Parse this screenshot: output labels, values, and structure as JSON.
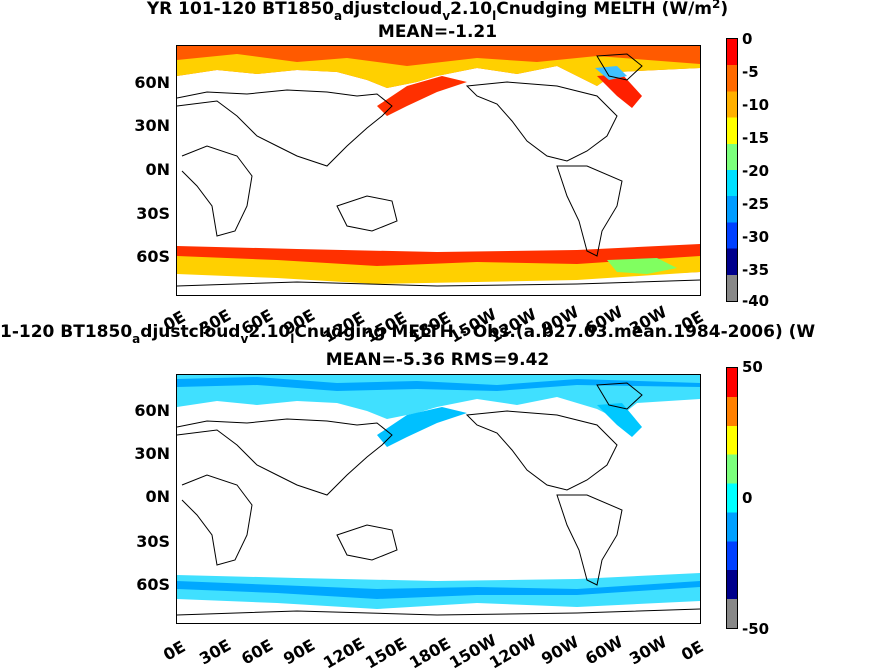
{
  "panels": [
    {
      "title_parts": [
        "YR 101-120 BT1850",
        "a",
        "djustcloud",
        "v",
        "2.10",
        "l",
        "Cnudging  MELTH (W/m",
        "2",
        ")"
      ],
      "subtitle": "MEAN=-1.21",
      "lat_labels": [
        "60N",
        "30N",
        "0N",
        "30S",
        "60S"
      ],
      "lon_labels": [
        "0E",
        "30E",
        "60E",
        "90E",
        "120E",
        "150E",
        "180E",
        "150W",
        "120W",
        "90W",
        "60W",
        "30W",
        "0E"
      ],
      "colorbar_labels": [
        "0",
        "-5",
        "-10",
        "-15",
        "-20",
        "-25",
        "-30",
        "-35",
        "-40"
      ],
      "colorbar_colors": [
        "#ff0000",
        "#ff6a00",
        "#ffb000",
        "#ffff00",
        "#7cff7c",
        "#00e0ff",
        "#009cff",
        "#0040ff",
        "#00008c",
        "#888888"
      ]
    },
    {
      "title_parts": [
        "1-120 BT1850",
        "a",
        "djustcloud",
        "v",
        "2.10",
        "l",
        "Cnudging MELTH - Obs.(a.b27.03.mean.1984-2006) (W"
      ],
      "subtitle": "MEAN=-5.36 RMS=9.42",
      "lat_labels": [
        "60N",
        "30N",
        "0N",
        "30S",
        "60S"
      ],
      "lon_labels": [
        "0E",
        "30E",
        "60E",
        "90E",
        "120E",
        "150E",
        "180E",
        "150W",
        "120W",
        "90W",
        "60W",
        "30W",
        "0E"
      ],
      "colorbar_labels": [
        "50",
        "0",
        "-50"
      ],
      "colorbar_colors": [
        "#ff0000",
        "#ff8000",
        "#ffff00",
        "#7cff7c",
        "#00ffff",
        "#00a0ff",
        "#0040ff",
        "#00008c",
        "#888888"
      ]
    }
  ],
  "chart_data": [
    {
      "type": "heatmap",
      "title": "YR 101-120 BT1850adjustcloudv2.10lCnudging  MELTH (W/m2)",
      "subtitle": "MEAN=-1.21",
      "xlabel": "",
      "ylabel": "",
      "x_ticks": [
        "0E",
        "30E",
        "60E",
        "90E",
        "120E",
        "150E",
        "180E",
        "150W",
        "120W",
        "90W",
        "60W",
        "30W",
        "0E"
      ],
      "y_ticks": [
        "60N",
        "30N",
        "0N",
        "30S",
        "60S"
      ],
      "colorbar_range": [
        -40,
        0
      ],
      "colorbar_ticks": [
        0,
        -5,
        -10,
        -15,
        -20,
        -25,
        -30,
        -35,
        -40
      ],
      "mean": -1.21
    },
    {
      "type": "heatmap",
      "title": "1-120 BT1850adjustcloudv2.10lCnudging MELTH - Obs.(a.b27.03.mean.1984-2006) (W",
      "subtitle": "MEAN=-5.36 RMS=9.42",
      "xlabel": "",
      "ylabel": "",
      "x_ticks": [
        "0E",
        "30E",
        "60E",
        "90E",
        "120E",
        "150E",
        "180E",
        "150W",
        "120W",
        "90W",
        "60W",
        "30W",
        "0E"
      ],
      "y_ticks": [
        "60N",
        "30N",
        "0N",
        "30S",
        "60S"
      ],
      "colorbar_range": [
        -50,
        50
      ],
      "colorbar_ticks": [
        50,
        0,
        -50
      ],
      "mean": -5.36,
      "rms": 9.42
    }
  ]
}
